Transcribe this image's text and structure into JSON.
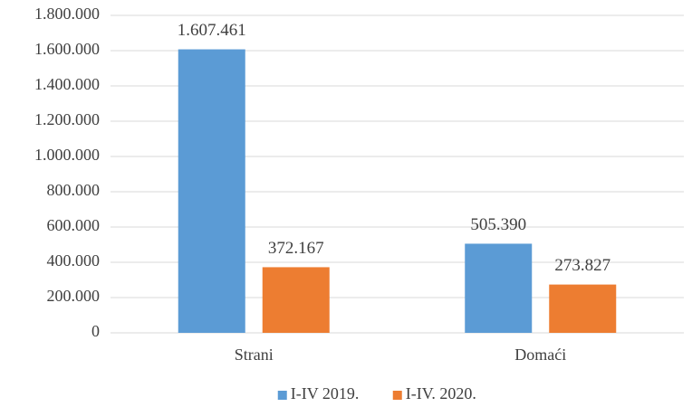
{
  "chart_data": {
    "type": "bar",
    "categories": [
      "Strani",
      "Domaći"
    ],
    "series": [
      {
        "name": "I-IV 2019.",
        "color": "#5b9bd5",
        "values": [
          1607461,
          505390
        ],
        "value_labels": [
          "1.607.461",
          "505.390"
        ]
      },
      {
        "name": "I-IV. 2020.",
        "color": "#ed7d31",
        "values": [
          372167,
          273827
        ],
        "value_labels": [
          "372.167",
          "273.827"
        ]
      }
    ],
    "ylim": [
      0,
      1800000
    ],
    "yticks": [
      0,
      {
        "value": 200000,
        "label": "200.000"
      },
      {
        "value": 400000,
        "label": "400.000"
      },
      {
        "value": 600000,
        "label": "600.000"
      },
      {
        "value": 800000,
        "label": "800.000"
      },
      {
        "value": 1000000,
        "label": "1.000.000"
      },
      {
        "value": 1200000,
        "label": "1.200.000"
      },
      {
        "value": 1400000,
        "label": "1.400.000"
      },
      {
        "value": 1600000,
        "label": "1.600.000"
      },
      {
        "value": 1800000,
        "label": "1.800.000"
      }
    ],
    "grid": true,
    "legend": "bottom"
  }
}
